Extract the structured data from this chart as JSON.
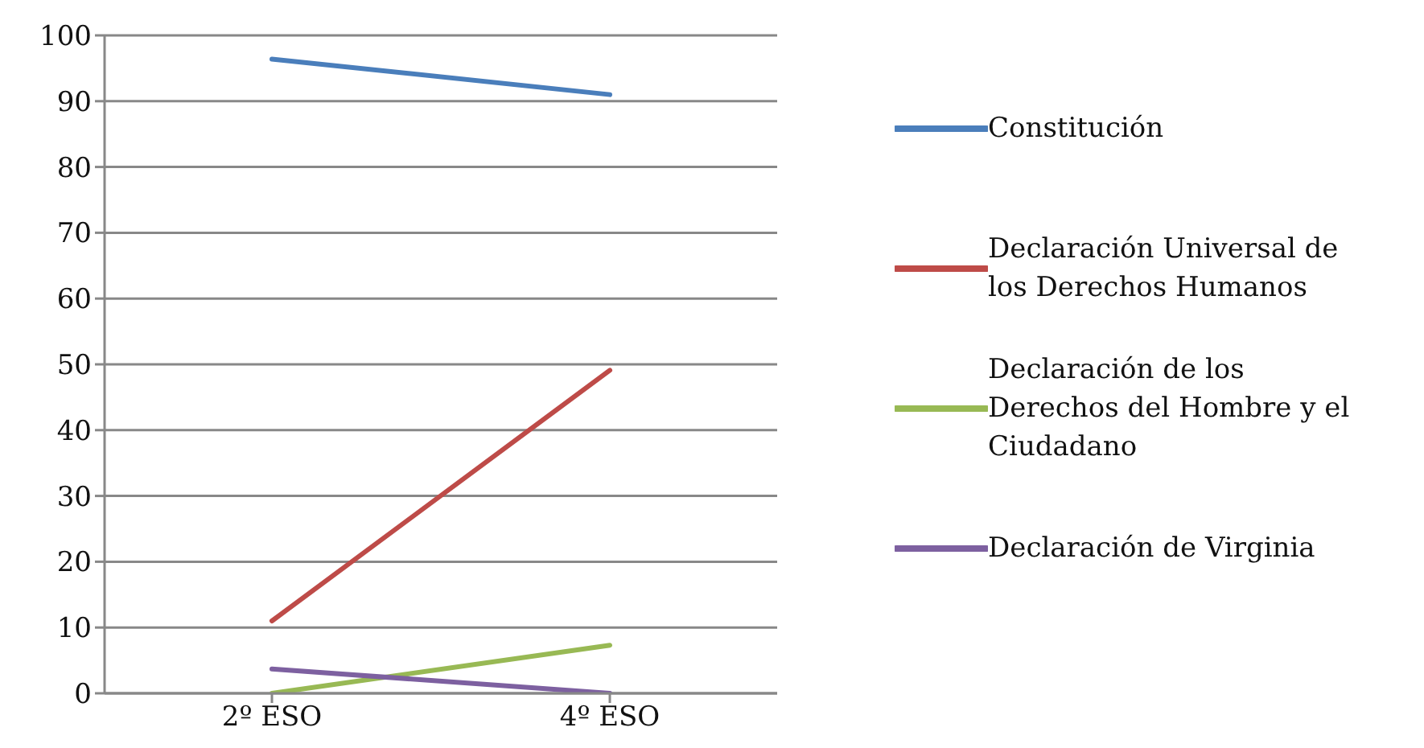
{
  "chart_data": {
    "type": "line",
    "categories": [
      "2º ESO",
      "4º ESO"
    ],
    "series": [
      {
        "name": "Constitución",
        "color": "#4a7ebb",
        "values": [
          96.4,
          91
        ]
      },
      {
        "name": "Declaración Universal de los Derechos Humanos",
        "color": "#be4b48",
        "values": [
          11,
          49.1
        ]
      },
      {
        "name": "Declaración de los Derechos del Hombre y el Ciudadano",
        "color": "#98b954",
        "values": [
          0,
          7.3
        ]
      },
      {
        "name": "Declaración de Virginia",
        "color": "#7d60a0",
        "values": [
          3.7,
          0
        ]
      }
    ],
    "ylim": [
      0,
      100
    ],
    "yticks": [
      0,
      10,
      20,
      30,
      40,
      50,
      60,
      70,
      80,
      90,
      100
    ],
    "grid": "y",
    "legend": "right",
    "marker": "none",
    "line_style": "solid"
  }
}
